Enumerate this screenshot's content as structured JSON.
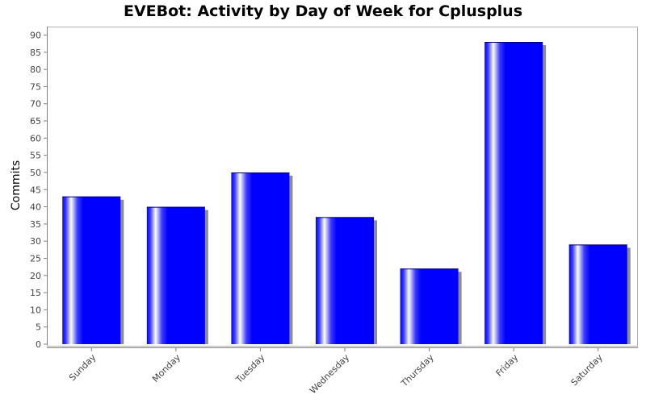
{
  "chart_data": {
    "type": "bar",
    "title": "EVEBot: Activity by Day of Week for Cplusplus",
    "xlabel": "",
    "ylabel": "Commits",
    "categories": [
      "Sunday",
      "Monday",
      "Tuesday",
      "Wednesday",
      "Thursday",
      "Friday",
      "Saturday"
    ],
    "values": [
      43,
      40,
      50,
      37,
      22,
      88,
      29
    ],
    "ylim": [
      0,
      92
    ],
    "yticks": [
      0,
      5,
      10,
      15,
      20,
      25,
      30,
      35,
      40,
      45,
      50,
      55,
      60,
      65,
      70,
      75,
      80,
      85,
      90
    ],
    "grid": false,
    "legend": "none",
    "colors": {
      "bar": "#0000ff",
      "bar_highlight": "#ffffff",
      "shadow": "#8c8c8c",
      "axis": "#808080",
      "plot_border": "#b0b0b0"
    }
  }
}
